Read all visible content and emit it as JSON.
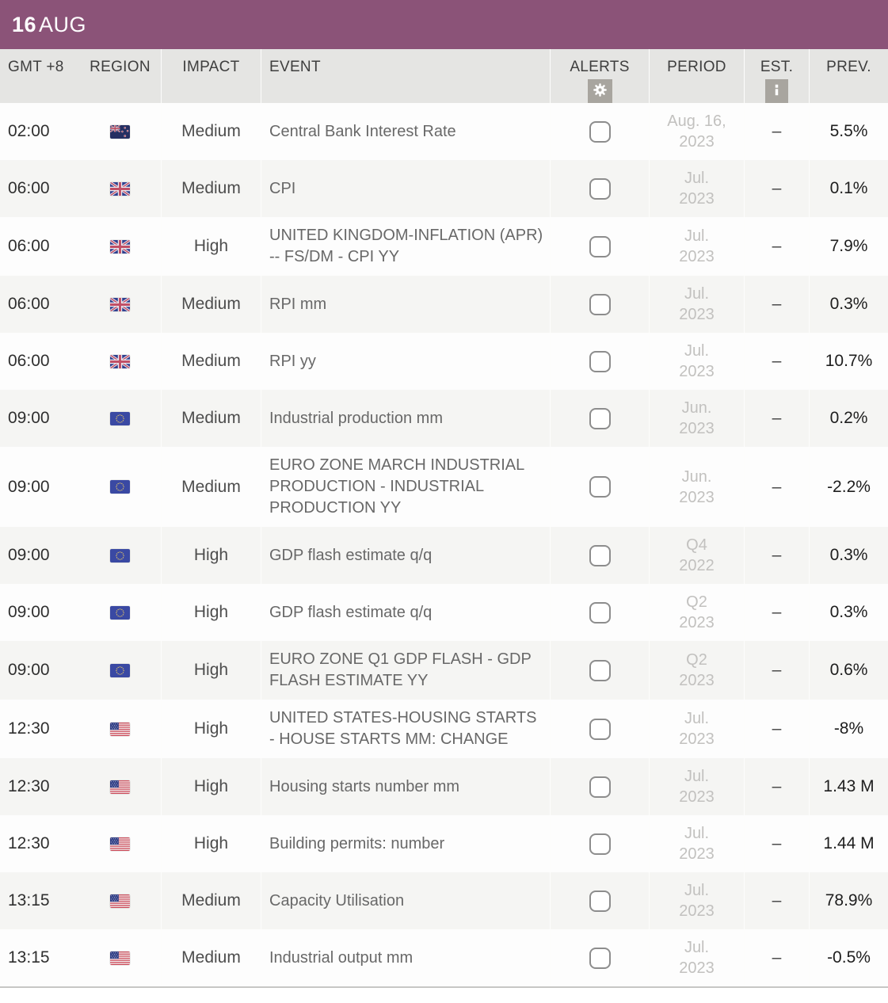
{
  "date_bar": {
    "day": "16",
    "month": "AUG"
  },
  "colors": {
    "accent_purple": "#8b5378",
    "header_bg": "#e5e5e3",
    "row_alt_bg": "#f5f5f3",
    "period_text": "#c2c1bf"
  },
  "table": {
    "columns": {
      "time": {
        "label": "GMT +8"
      },
      "region": {
        "label": "REGION"
      },
      "impact": {
        "label": "IMPACT"
      },
      "event": {
        "label": "EVENT"
      },
      "alerts": {
        "label": "ALERTS",
        "icon": "gear-icon"
      },
      "period": {
        "label": "PERIOD"
      },
      "est": {
        "label": "EST.",
        "icon": "info-icon"
      },
      "prev": {
        "label": "PREV."
      }
    },
    "rows": [
      {
        "time": "02:00",
        "region": "new-zealand",
        "impact": "Medium",
        "event": "Central Bank Interest Rate",
        "period": [
          "Aug. 16,",
          "2023"
        ],
        "est": "–",
        "prev": "5.5%"
      },
      {
        "time": "06:00",
        "region": "united-kingdom",
        "impact": "Medium",
        "event": "CPI",
        "period": [
          "Jul.",
          "2023"
        ],
        "est": "–",
        "prev": "0.1%"
      },
      {
        "time": "06:00",
        "region": "united-kingdom",
        "impact": "High",
        "event": "UNITED KINGDOM-INFLATION (APR) -- FS/DM - CPI YY",
        "period": [
          "Jul.",
          "2023"
        ],
        "est": "–",
        "prev": "7.9%"
      },
      {
        "time": "06:00",
        "region": "united-kingdom",
        "impact": "Medium",
        "event": "RPI mm",
        "period": [
          "Jul.",
          "2023"
        ],
        "est": "–",
        "prev": "0.3%"
      },
      {
        "time": "06:00",
        "region": "united-kingdom",
        "impact": "Medium",
        "event": "RPI yy",
        "period": [
          "Jul.",
          "2023"
        ],
        "est": "–",
        "prev": "10.7%"
      },
      {
        "time": "09:00",
        "region": "european-union",
        "impact": "Medium",
        "event": "Industrial production mm",
        "period": [
          "Jun.",
          "2023"
        ],
        "est": "–",
        "prev": "0.2%"
      },
      {
        "time": "09:00",
        "region": "european-union",
        "impact": "Medium",
        "event": "EURO ZONE MARCH INDUSTRIAL PRODUCTION - INDUSTRIAL PRODUCTION YY",
        "period": [
          "Jun.",
          "2023"
        ],
        "est": "–",
        "prev": "-2.2%"
      },
      {
        "time": "09:00",
        "region": "european-union",
        "impact": "High",
        "event": "GDP flash estimate q/q",
        "period": [
          "Q4",
          "2022"
        ],
        "est": "–",
        "prev": "0.3%"
      },
      {
        "time": "09:00",
        "region": "european-union",
        "impact": "High",
        "event": "GDP flash estimate q/q",
        "period": [
          "Q2",
          "2023"
        ],
        "est": "–",
        "prev": "0.3%"
      },
      {
        "time": "09:00",
        "region": "european-union",
        "impact": "High",
        "event": "EURO ZONE Q1 GDP FLASH - GDP FLASH ESTIMATE YY",
        "period": [
          "Q2",
          "2023"
        ],
        "est": "–",
        "prev": "0.6%"
      },
      {
        "time": "12:30",
        "region": "united-states",
        "impact": "High",
        "event": "UNITED STATES-HOUSING STARTS - HOUSE STARTS MM: CHANGE",
        "period": [
          "Jul.",
          "2023"
        ],
        "est": "–",
        "prev": "-8%"
      },
      {
        "time": "12:30",
        "region": "united-states",
        "impact": "High",
        "event": "Housing starts number mm",
        "period": [
          "Jul.",
          "2023"
        ],
        "est": "–",
        "prev": "1.43 M"
      },
      {
        "time": "12:30",
        "region": "united-states",
        "impact": "High",
        "event": "Building permits: number",
        "period": [
          "Jul.",
          "2023"
        ],
        "est": "–",
        "prev": "1.44 M"
      },
      {
        "time": "13:15",
        "region": "united-states",
        "impact": "Medium",
        "event": "Capacity Utilisation",
        "period": [
          "Jul.",
          "2023"
        ],
        "est": "–",
        "prev": "78.9%"
      },
      {
        "time": "13:15",
        "region": "united-states",
        "impact": "Medium",
        "event": "Industrial output mm",
        "period": [
          "Jul.",
          "2023"
        ],
        "est": "–",
        "prev": "-0.5%"
      }
    ]
  }
}
